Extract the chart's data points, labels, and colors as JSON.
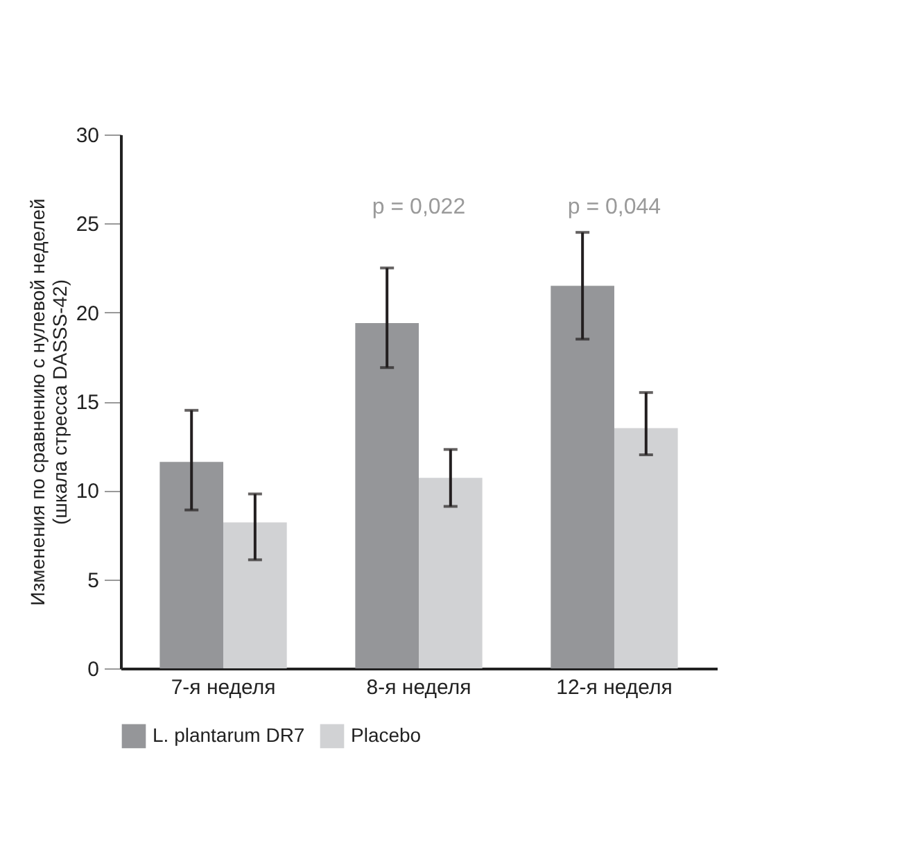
{
  "chart_data": {
    "type": "bar",
    "ylabel": "Изменения по сравнению с нулевой неделей\n(шкала стресса DASSS-42)",
    "categories": [
      "7-я неделя",
      "8-я неделя",
      "12-я неделя"
    ],
    "series": [
      {
        "name": "L. plantarum DR7",
        "color": "#959699",
        "values": [
          11.6,
          19.4,
          21.5
        ],
        "errors": [
          [
            8.9,
            14.5
          ],
          [
            16.9,
            22.5
          ],
          [
            18.5,
            24.5
          ]
        ]
      },
      {
        "name": "Placebo",
        "color": "#d1d2d4",
        "values": [
          8.2,
          10.7,
          13.5
        ],
        "errors": [
          [
            6.1,
            9.8
          ],
          [
            9.1,
            12.3
          ],
          [
            12.0,
            15.5
          ]
        ]
      }
    ],
    "annotations": [
      "p = 0,022",
      "p = 0,044"
    ],
    "ylim": [
      0,
      30
    ],
    "yticks": [
      0,
      5,
      10,
      15,
      20,
      25,
      30
    ],
    "grid": false,
    "legend": "bottom"
  }
}
